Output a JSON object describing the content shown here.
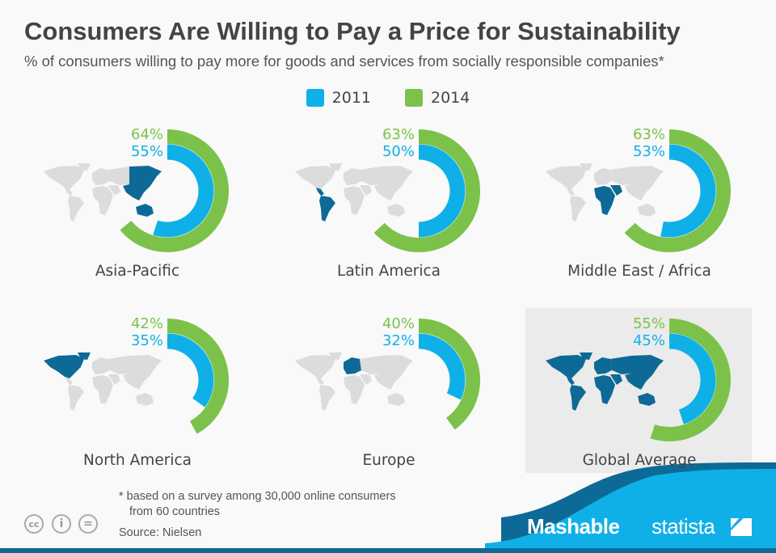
{
  "header": {
    "title": "Consumers Are Willing to Pay a Price for Sustainability",
    "subtitle": "% of consumers willing to pay more for goods and services from socially responsible companies*"
  },
  "colors": {
    "2011": "#0fb0e8",
    "2014": "#7cc24a",
    "highlight": "#0d6a96",
    "map_base": "#dcdcdc",
    "global_panel": "#ebebeb"
  },
  "chart_data": {
    "type": "radial-bar",
    "title": "Consumers Are Willing to Pay a Price for Sustainability",
    "categories": [
      "Asia-Pacific",
      "Latin America",
      "Middle East / Africa",
      "North America",
      "Europe",
      "Global Average"
    ],
    "series": [
      {
        "name": "2011",
        "values": [
          55,
          50,
          53,
          35,
          32,
          45
        ]
      },
      {
        "name": "2014",
        "values": [
          64,
          63,
          63,
          42,
          40,
          55
        ]
      }
    ],
    "value_labels": {
      "2011": [
        "55%",
        "50%",
        "53%",
        "35%",
        "32%",
        "45%"
      ],
      "2014": [
        "64%",
        "63%",
        "63%",
        "42%",
        "40%",
        "55%"
      ]
    },
    "highlighted_regions": [
      [
        "asia-east",
        "oceania"
      ],
      [
        "south-america",
        "central-america"
      ],
      [
        "africa",
        "middle-east"
      ],
      [
        "north-america",
        "greenland"
      ],
      [
        "europe"
      ],
      [
        "all"
      ]
    ],
    "legend": "top-center"
  },
  "legend": {
    "items": [
      {
        "label": "2011"
      },
      {
        "label": "2014"
      }
    ]
  },
  "footer": {
    "note_line1": "* based on a survey among 30,000 online consumers",
    "note_line2": "from 60 countries",
    "source": "Source: Nielsen",
    "cc_icons": [
      "cc",
      "by",
      "nd"
    ],
    "brand1": "Mashable",
    "brand2": "statista"
  }
}
